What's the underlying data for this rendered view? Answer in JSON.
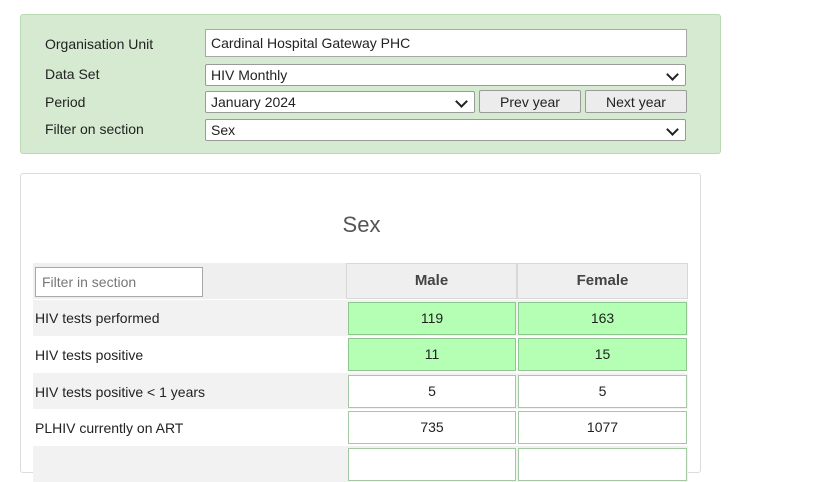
{
  "selection": {
    "org_unit_label": "Organisation Unit",
    "org_unit_value": "Cardinal Hospital Gateway PHC",
    "dataset_label": "Data Set",
    "dataset_value": "HIV Monthly",
    "period_label": "Period",
    "period_value": "January 2024",
    "prev_year_label": "Prev year",
    "next_year_label": "Next year",
    "filter_section_label": "Filter on section",
    "filter_section_value": "Sex"
  },
  "form": {
    "section_title": "Sex",
    "filter_placeholder": "Filter in section",
    "columns": [
      "Male",
      "Female"
    ],
    "rows": [
      {
        "label": "HIV tests performed",
        "values": [
          "119",
          "163"
        ],
        "filled": true
      },
      {
        "label": "HIV tests positive",
        "values": [
          "11",
          "15"
        ],
        "filled": true
      },
      {
        "label": "HIV tests positive < 1 years",
        "values": [
          "5",
          "5"
        ],
        "filled": false
      },
      {
        "label": "PLHIV currently on ART",
        "values": [
          "735",
          "1077"
        ],
        "filled": false
      },
      {
        "label": "",
        "values": [
          "",
          ""
        ],
        "filled": false
      }
    ]
  },
  "colors": {
    "panel_background": "#d5ead0",
    "cell_filled": "#b5ffb5",
    "cell_empty": "#ffffff",
    "row_stripe": "#f2f2f2"
  }
}
